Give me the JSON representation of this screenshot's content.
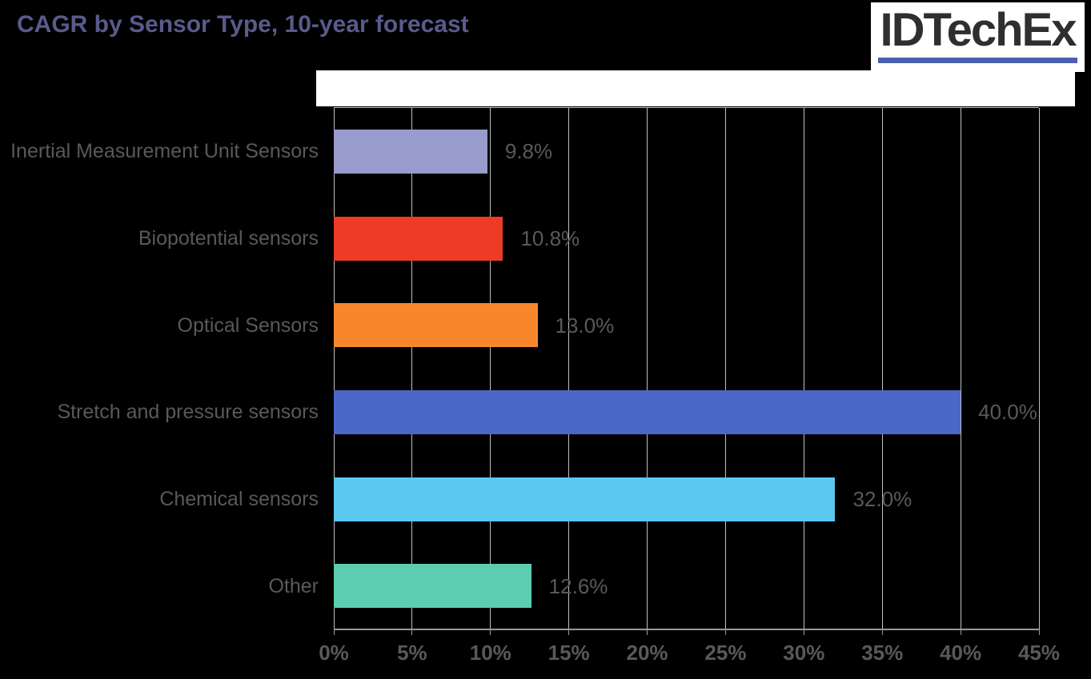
{
  "page": {
    "background": "#000000"
  },
  "header": {
    "title": "CAGR by Sensor Type, 10-year forecast",
    "title_color": "#5a5a8c"
  },
  "logo": {
    "text": "IDTechEx",
    "text_color": "#2f2f2f",
    "underline_color": "#4b5fad",
    "background": "#ffffff"
  },
  "chart_data": {
    "type": "bar",
    "orientation": "horizontal",
    "title": "CAGR by Sensor Type, 10-year forecast",
    "categories": [
      "Inertial Measurement Unit Sensors",
      "Biopotential sensors",
      "Optical Sensors",
      "Stretch and pressure sensors",
      "Chemical sensors",
      "Other"
    ],
    "values": [
      9.8,
      10.8,
      13.0,
      40.0,
      32.0,
      12.6
    ],
    "value_labels": [
      "9.8%",
      "10.8%",
      "13.0%",
      "40.0%",
      "32.0%",
      "12.6%"
    ],
    "bar_colors": [
      "#989ccd",
      "#ee3b26",
      "#f8872c",
      "#4c68c6",
      "#5bc8f0",
      "#5ccdb0"
    ],
    "xlim": [
      0,
      45
    ],
    "x_tick_step": 5,
    "x_tick_labels": [
      "0%",
      "5%",
      "10%",
      "15%",
      "20%",
      "25%",
      "30%",
      "35%",
      "40%",
      "45%"
    ],
    "grid": true,
    "gridline_color": "#bfbfbf",
    "axis_color": "#999999",
    "label_color": "#595959",
    "legend": "none"
  }
}
